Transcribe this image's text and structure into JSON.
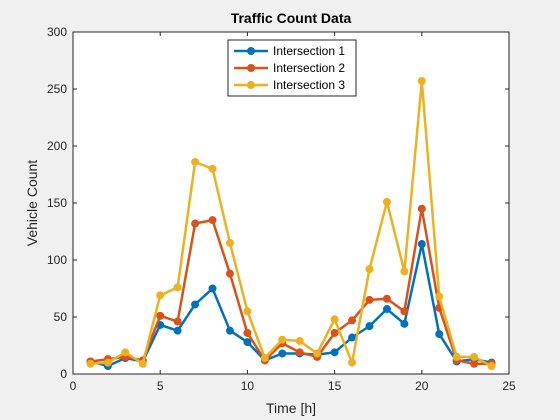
{
  "chart_data": {
    "type": "line",
    "title": "Traffic Count Data",
    "xlabel": "Time [h]",
    "ylabel": "Vehicle Count",
    "xlim": [
      0,
      25
    ],
    "ylim": [
      0,
      300
    ],
    "xticks": [
      0,
      5,
      10,
      15,
      20,
      25
    ],
    "yticks": [
      0,
      50,
      100,
      150,
      200,
      250,
      300
    ],
    "grid": false,
    "legend_position": "top-center",
    "x": [
      1,
      2,
      3,
      4,
      5,
      6,
      7,
      8,
      9,
      10,
      11,
      12,
      13,
      14,
      15,
      16,
      17,
      18,
      19,
      20,
      21,
      22,
      23,
      24
    ],
    "series": [
      {
        "name": "Intersection 1",
        "color": "#0072bd",
        "values": [
          11,
          7,
          14,
          11,
          43,
          38,
          61,
          75,
          38,
          28,
          12,
          18,
          18,
          17,
          19,
          32,
          42,
          57,
          44,
          114,
          35,
          11,
          13,
          10
        ]
      },
      {
        "name": "Intersection 2",
        "color": "#d95319",
        "values": [
          11,
          13,
          15,
          12,
          51,
          46,
          132,
          135,
          88,
          36,
          12,
          27,
          19,
          15,
          36,
          47,
          65,
          66,
          55,
          145,
          58,
          12,
          9,
          9
        ]
      },
      {
        "name": "Intersection 3",
        "color": "#edb120",
        "values": [
          9,
          10,
          19,
          9,
          69,
          76,
          186,
          180,
          115,
          55,
          14,
          30,
          29,
          18,
          48,
          10,
          92,
          151,
          90,
          257,
          68,
          15,
          15,
          7
        ]
      }
    ]
  }
}
